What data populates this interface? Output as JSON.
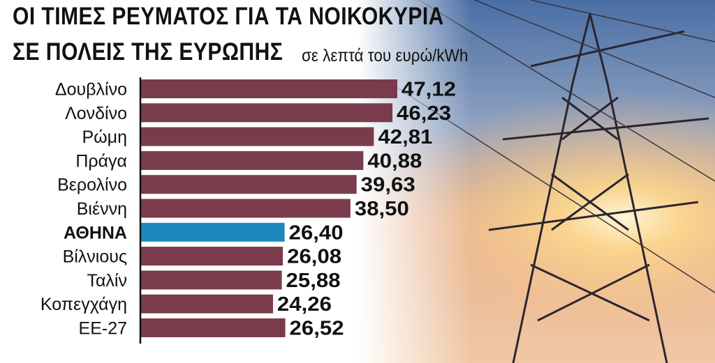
{
  "title_line1": "ΟΙ ΤΙΜΕΣ ΡΕΥΜΑΤΟΣ ΓΙΑ ΤΑ ΝΟΙΚΟΚΥΡΙΑ",
  "title_line2": "ΣΕ ΠΟΛΕΙΣ ΤΗΣ ΕΥΡΩΠΗΣ",
  "subtitle": "σε λεπτά του ευρώ/kWh",
  "colors": {
    "bar": "#7a3c4c",
    "highlight_bar": "#1e88bd",
    "axis": "#111111"
  },
  "chart_data": {
    "type": "bar",
    "orientation": "horizontal",
    "title": "ΟΙ ΤΙΜΕΣ ΡΕΥΜΑΤΟΣ ΓΙΑ ΤΑ ΝΟΙΚΟΚΥΡΙΑ ΣΕ ΠΟΛΕΙΣ ΤΗΣ ΕΥΡΩΠΗΣ",
    "subtitle": "σε λεπτά του ευρώ/kWh",
    "categories": [
      "Δουβλίνο",
      "Λονδίνο",
      "Ρώμη",
      "Πράγα",
      "Βερολίνο",
      "Βιέννη",
      "ΑΘΗΝΑ",
      "Βίλνιους",
      "Ταλίν",
      "Κοπεγχάγη",
      "ΕΕ-27"
    ],
    "values": [
      47.12,
      46.23,
      42.81,
      40.88,
      39.63,
      38.5,
      26.4,
      26.08,
      25.88,
      24.26,
      26.52
    ],
    "value_labels": [
      "47,12",
      "46,23",
      "42,81",
      "40,88",
      "39,63",
      "38,50",
      "26,40",
      "26,08",
      "25,88",
      "24,26",
      "26,52"
    ],
    "highlighted": [
      "ΑΘΗΝΑ"
    ],
    "xlim": [
      0,
      50
    ],
    "grid": false
  }
}
